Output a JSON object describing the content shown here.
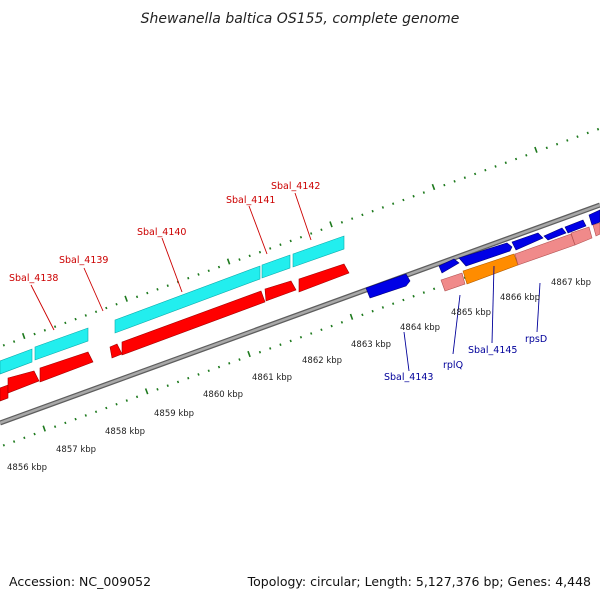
{
  "title": "Shewanella baltica OS155, complete genome",
  "footer": {
    "accession": "Accession: NC_009052",
    "summary": "Topology: circular; Length: 5,127,376 bp; Genes: 4,448"
  },
  "colors": {
    "background": "#ffffff",
    "backbone": "#8c8c8c",
    "tick": "#1e7a1e",
    "forward_strand_label": "#cc0000",
    "reverse_strand_label": "#00009a",
    "cds_forward": "#ff0000",
    "cds_forward_pale": "#f08a8a",
    "cds_cyan": "#22eeee",
    "cds_reverse": "#0000e6",
    "cds_orange": "#ff8c00"
  },
  "scale_labels": [
    "4856 kbp",
    "4857 kbp",
    "4858 kbp",
    "4859 kbp",
    "4860 kbp",
    "4861 kbp",
    "4862 kbp",
    "4863 kbp",
    "4864 kbp",
    "4865 kbp",
    "4866 kbp",
    "4867 kbp"
  ],
  "gene_labels": {
    "top": [
      "Sbal_4138",
      "Sbal_4139",
      "Sbal_4140",
      "Sbal_4141",
      "Sbal_4142"
    ],
    "bottom": [
      "Sbal_4143",
      "rplQ",
      "Sbal_4145",
      "rpsD"
    ]
  }
}
